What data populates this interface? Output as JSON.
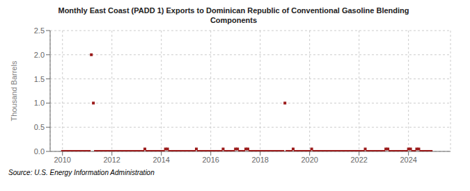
{
  "chart_data": {
    "type": "scatter",
    "title": "Monthly East Coast (PADD 1) Exports to Dominican Republic of Conventional Gasoline Blending\nComponents",
    "ylabel": "Thousand Barrels",
    "annotations": [
      "Source: U.S. Energy Information Administration"
    ],
    "color": "#9b1b1b",
    "marker": "square",
    "grid": true,
    "xlim": [
      2009.5,
      2025.7
    ],
    "xticks": [
      2010,
      2012,
      2014,
      2016,
      2018,
      2020,
      2022,
      2024
    ],
    "ylim": [
      0.0,
      2.5
    ],
    "yticks": [
      {
        "value": 0.0,
        "label": "0.0"
      },
      0.5,
      {
        "value": 1.0,
        "label": "1.0"
      },
      1.5,
      {
        "value": 2.0,
        "label": "2.0"
      },
      2.5
    ],
    "x": [
      2010.0,
      2010.083,
      2010.167,
      2010.25,
      2010.333,
      2010.417,
      2010.5,
      2010.583,
      2010.667,
      2010.75,
      2010.833,
      2010.917,
      2011.0,
      2011.083,
      2011.167,
      2011.25,
      2011.333,
      2011.417,
      2011.5,
      2011.583,
      2011.667,
      2011.75,
      2011.833,
      2011.917,
      2012.0,
      2012.083,
      2012.167,
      2012.25,
      2012.333,
      2012.417,
      2012.5,
      2012.583,
      2012.667,
      2012.75,
      2012.833,
      2012.917,
      2013.0,
      2013.083,
      2013.167,
      2013.25,
      2013.333,
      2013.417,
      2013.5,
      2013.583,
      2013.667,
      2013.75,
      2013.833,
      2013.917,
      2014.0,
      2014.083,
      2014.167,
      2014.25,
      2014.333,
      2014.417,
      2014.5,
      2014.583,
      2014.667,
      2014.75,
      2014.833,
      2014.917,
      2015.0,
      2015.083,
      2015.167,
      2015.25,
      2015.333,
      2015.417,
      2015.5,
      2015.583,
      2015.667,
      2015.75,
      2015.833,
      2015.917,
      2016.0,
      2016.083,
      2016.167,
      2016.25,
      2016.333,
      2016.417,
      2016.5,
      2016.583,
      2016.667,
      2016.75,
      2016.833,
      2016.917,
      2017.0,
      2017.083,
      2017.167,
      2017.25,
      2017.333,
      2017.417,
      2017.5,
      2017.583,
      2017.667,
      2017.75,
      2017.833,
      2017.917,
      2018.0,
      2018.083,
      2018.167,
      2018.25,
      2018.333,
      2018.417,
      2018.5,
      2018.583,
      2018.667,
      2018.75,
      2018.833,
      2018.917,
      2019.0,
      2019.083,
      2019.167,
      2019.25,
      2019.333,
      2019.417,
      2019.5,
      2019.583,
      2019.667,
      2019.75,
      2019.833,
      2019.917,
      2020.0,
      2020.083,
      2020.167,
      2020.25,
      2020.333,
      2020.417,
      2020.5,
      2020.583,
      2020.667,
      2020.75,
      2020.833,
      2020.917,
      2021.0,
      2021.083,
      2021.167,
      2021.25,
      2021.333,
      2021.417,
      2021.5,
      2021.583,
      2021.667,
      2021.75,
      2021.833,
      2021.917,
      2022.0,
      2022.083,
      2022.167,
      2022.25,
      2022.333,
      2022.417,
      2022.5,
      2022.583,
      2022.667,
      2022.75,
      2022.833,
      2022.917,
      2023.0,
      2023.083,
      2023.167,
      2023.25,
      2023.333,
      2023.417,
      2023.5,
      2023.583,
      2023.667,
      2023.75,
      2023.833,
      2023.917,
      2024.0,
      2024.083,
      2024.167,
      2024.25,
      2024.333,
      2024.417,
      2024.5,
      2024.583,
      2024.667,
      2024.75,
      2024.833,
      2024.917
    ],
    "values": [
      0.0,
      0.0,
      0.0,
      0.0,
      0.0,
      0.0,
      0.0,
      0.0,
      0.0,
      0.0,
      0.0,
      0.0,
      0.0,
      0.0,
      2.0,
      1.0,
      0.0,
      0.0,
      0.0,
      0.0,
      0.0,
      0.0,
      0.0,
      0.0,
      0.0,
      0.0,
      0.0,
      0.0,
      0.0,
      0.0,
      0.0,
      0.0,
      0.0,
      0.0,
      0.0,
      0.0,
      0.0,
      0.0,
      0.0,
      0.0,
      0.05,
      0.0,
      0.0,
      0.0,
      0.0,
      0.0,
      0.0,
      0.0,
      0.0,
      0.0,
      0.05,
      0.05,
      0.0,
      0.0,
      0.0,
      0.0,
      0.0,
      0.0,
      0.0,
      0.0,
      0.0,
      0.0,
      0.0,
      0.0,
      0.0,
      0.05,
      0.0,
      0.0,
      0.0,
      0.0,
      0.0,
      0.0,
      0.0,
      0.0,
      0.0,
      0.0,
      0.0,
      0.0,
      0.05,
      0.0,
      0.0,
      0.0,
      0.0,
      0.0,
      0.05,
      0.05,
      0.0,
      0.0,
      0.0,
      0.05,
      0.05,
      0.0,
      0.0,
      0.0,
      0.0,
      0.0,
      0.0,
      0.0,
      0.0,
      0.0,
      0.0,
      0.0,
      0.0,
      0.0,
      0.0,
      0.0,
      0.0,
      0.0,
      1.0,
      0.0,
      0.0,
      0.0,
      0.05,
      0.0,
      0.0,
      0.0,
      0.0,
      0.0,
      0.0,
      0.0,
      0.0,
      0.05,
      0.0,
      0.0,
      0.0,
      0.0,
      0.0,
      0.0,
      0.0,
      0.0,
      0.0,
      0.0,
      0.0,
      0.0,
      0.0,
      0.0,
      0.0,
      0.0,
      0.0,
      0.0,
      0.0,
      0.0,
      0.0,
      0.0,
      0.0,
      0.0,
      0.0,
      0.05,
      0.0,
      0.0,
      0.0,
      0.0,
      0.0,
      0.0,
      0.0,
      0.0,
      0.0,
      0.05,
      0.05,
      0.0,
      0.0,
      0.0,
      0.0,
      0.0,
      0.0,
      0.0,
      0.0,
      0.0,
      0.05,
      0.05,
      0.0,
      0.0,
      0.05,
      0.05,
      0.0,
      0.0,
      0.0,
      0.0,
      0.0,
      0.0
    ]
  }
}
